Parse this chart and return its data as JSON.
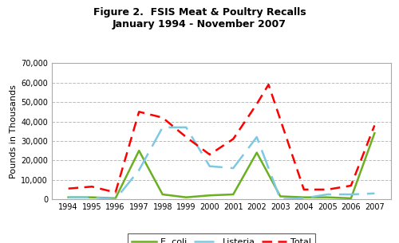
{
  "title_line1": "Figure 2.  FSIS Meat & Poultry Recalls",
  "title_line2": "January 1994 - November 2007",
  "years": [
    1994,
    1995,
    1996,
    1997,
    1998,
    1999,
    2000,
    2001,
    2002,
    2003,
    2004,
    2005,
    2006,
    2007
  ],
  "ecoli": [
    1000,
    1000,
    500,
    25000,
    2500,
    1000,
    2000,
    2500,
    24000,
    1500,
    1000,
    1000,
    500,
    34000
  ],
  "listeria": [
    1000,
    1000,
    0,
    15000,
    37000,
    37000,
    17000,
    16000,
    32000,
    0,
    500,
    2500,
    2500,
    3000
  ],
  "total_years": [
    1994,
    1995,
    1996,
    1997,
    1998,
    1999,
    2000,
    2001,
    2002,
    2002.5,
    2003,
    2004,
    2005,
    2006,
    2007
  ],
  "total": [
    5500,
    6500,
    3500,
    45000,
    42000,
    32000,
    23000,
    31000,
    49000,
    59000,
    41000,
    5000,
    5000,
    7000,
    38000
  ],
  "ecoli_color": "#6ab020",
  "listeria_color": "#7ec8e3",
  "total_color": "#ff0000",
  "bg_color": "#ffffff",
  "grid_color": "#bbbbbb",
  "ylabel": "Pounds in Thousands",
  "ylim": [
    0,
    70000
  ],
  "yticks": [
    0,
    10000,
    20000,
    30000,
    40000,
    50000,
    60000,
    70000
  ],
  "xlim_min": 1993.3,
  "xlim_max": 2007.7
}
